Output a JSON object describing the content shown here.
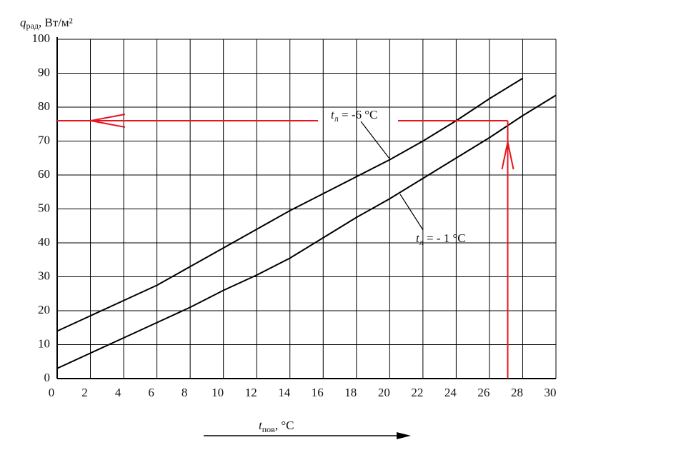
{
  "chart_data": {
    "type": "line",
    "y_label": {
      "symbol": "q",
      "subscript": "рад",
      "unit": ", Вт/м²"
    },
    "x_label": {
      "symbol": "t",
      "subscript": "пов",
      "unit": ", °C"
    },
    "x": [
      0,
      2,
      4,
      6,
      8,
      10,
      12,
      14,
      16,
      18,
      20,
      22,
      24,
      26,
      28,
      30
    ],
    "series": [
      {
        "label": {
          "symbol": "t",
          "subscript": "л",
          "text": " = -6 °C"
        },
        "color": "#000000",
        "values": [
          14,
          18.5,
          23,
          27.5,
          33,
          38.5,
          44,
          49.5,
          54.5,
          59.5,
          64.5,
          70,
          76,
          82.5,
          88.5,
          null
        ]
      },
      {
        "label": {
          "symbol": "t",
          "subscript": "л",
          "text": " = - 1 °C"
        },
        "color": "#000000",
        "values": [
          3,
          7.5,
          12,
          16.5,
          21,
          26,
          30.5,
          35.5,
          41.5,
          47.5,
          53,
          59,
          65,
          71,
          77.5,
          83.5
        ]
      }
    ],
    "reading": {
      "x": 27.1,
      "y": 76,
      "color": "#e8141e"
    },
    "xlim": [
      0,
      30
    ],
    "ylim": [
      0,
      100
    ],
    "xticks": [
      0,
      2,
      4,
      6,
      8,
      10,
      12,
      14,
      16,
      18,
      20,
      22,
      24,
      26,
      28,
      30
    ],
    "yticks": [
      0,
      10,
      20,
      30,
      40,
      50,
      60,
      70,
      80,
      90,
      100
    ],
    "grid": true
  }
}
